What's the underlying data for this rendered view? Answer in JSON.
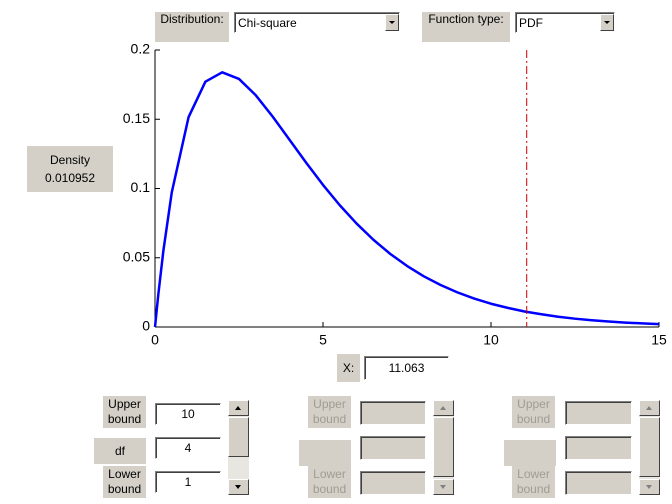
{
  "controls": {
    "distribution_label": "Distribution:",
    "distribution": "Chi-square",
    "function_type_label": "Function type:",
    "function_type": "PDF",
    "density_label": "Density",
    "density": 0.010952,
    "x_label": "X:",
    "x_value": 11.063
  },
  "parameters": [
    {
      "upper_label": "Upper bound",
      "upper": 10,
      "name": "df",
      "value": 4,
      "lower_label": "Lower bound",
      "lower": 1
    },
    {
      "upper_label": "Upper bound",
      "lower_label": "Lower bound"
    },
    {
      "upper_label": "Upper bound",
      "lower_label": "Lower bound"
    }
  ],
  "chart_data": {
    "type": "line",
    "x": [
      0,
      0.1,
      0.25,
      0.5,
      1,
      1.5,
      2,
      2.5,
      3,
      3.5,
      4,
      4.5,
      5,
      5.5,
      6,
      6.5,
      7,
      7.5,
      8,
      8.5,
      9,
      9.5,
      10,
      10.5,
      11,
      11.5,
      12,
      12.5,
      13,
      13.5,
      14,
      14.5,
      15
    ],
    "series": [
      {
        "color": "#0000ff",
        "values": [
          0,
          0.0238,
          0.0552,
          0.0973,
          0.1516,
          0.1771,
          0.1839,
          0.1791,
          0.1673,
          0.152,
          0.1353,
          0.1186,
          0.1026,
          0.0879,
          0.0747,
          0.063,
          0.0528,
          0.0441,
          0.0366,
          0.0303,
          0.025,
          0.0205,
          0.0168,
          0.0138,
          0.0112,
          0.0092,
          0.0074,
          0.006,
          0.0049,
          0.004,
          0.0032,
          0.0026,
          0.0021
        ]
      }
    ],
    "xlim": [
      0,
      15
    ],
    "ylim": [
      0,
      0.2
    ],
    "xticks": [
      0,
      5,
      10,
      15
    ],
    "yticks": [
      0,
      0.05,
      0.1,
      0.15,
      0.2
    ],
    "reference_color": "#cc0000"
  }
}
